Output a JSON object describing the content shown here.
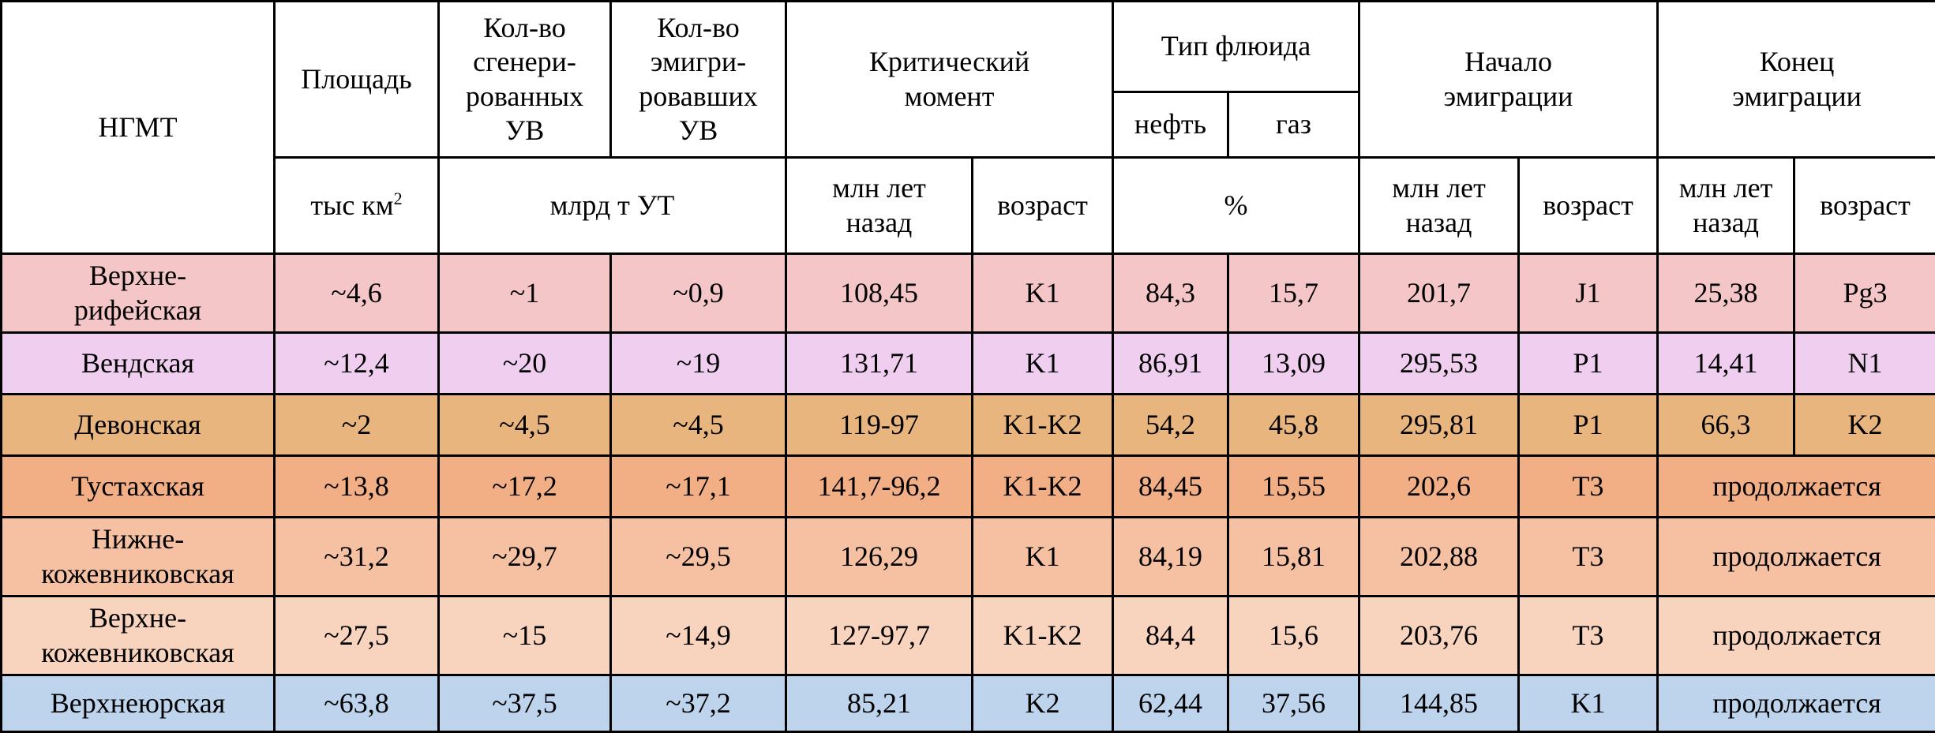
{
  "header": {
    "ngmt": "НГМТ",
    "area": "Площадь",
    "generated": "Кол-во\nсгенери-\nрованных\nУВ",
    "emigrated": "Кол-во\nэмигри-\nровавших\nУВ",
    "critical": "Критический\nмомент",
    "fluid": "Тип флюида",
    "oil": "нефть",
    "gas": "газ",
    "start": "Начало\nэмиграции",
    "end": "Конец\nэмиграции",
    "area_unit": "тыс км",
    "area_unit_sup": "2",
    "volume_unit": "млрд т УТ",
    "mya": "млн лет\nназад",
    "age": "возраст",
    "percent": "%"
  },
  "rows": [
    {
      "name": "Верхне-\nрифейская",
      "color": "#f5c6c8",
      "area": "~4,6",
      "gen": "~1",
      "emig": "~0,9",
      "crit_mya": "108,45",
      "crit_age": "K1",
      "oil": "84,3",
      "gas": "15,7",
      "start_mya": "201,7",
      "start_age": "J1",
      "end_mya": "25,38",
      "end_age": "Pg3"
    },
    {
      "name": "Вендская",
      "color": "#f0cef0",
      "area": "~12,4",
      "gen": "~20",
      "emig": "~19",
      "crit_mya": "131,71",
      "crit_age": "K1",
      "oil": "86,91",
      "gas": "13,09",
      "start_mya": "295,53",
      "start_age": "P1",
      "end_mya": "14,41",
      "end_age": "N1"
    },
    {
      "name": "Девонская",
      "color": "#e8b57f",
      "area": "~2",
      "gen": "~4,5",
      "emig": "~4,5",
      "crit_mya": "119-97",
      "crit_age": "K1-K2",
      "oil": "54,2",
      "gas": "45,8",
      "start_mya": "295,81",
      "start_age": "P1",
      "end_mya": "66,3",
      "end_age": "K2"
    },
    {
      "name": "Тустахская",
      "color": "#f2ae85",
      "area": "~13,8",
      "gen": "~17,2",
      "emig": "~17,1",
      "crit_mya": "141,7-96,2",
      "crit_age": "K1-K2",
      "oil": "84,45",
      "gas": "15,55",
      "start_mya": "202,6",
      "start_age": "T3",
      "end_merged": "продолжается"
    },
    {
      "name": "Нижне-\nкожевниковская",
      "color": "#f5c1a2",
      "area": "~31,2",
      "gen": "~29,7",
      "emig": "~29,5",
      "crit_mya": "126,29",
      "crit_age": "K1",
      "oil": "84,19",
      "gas": "15,81",
      "start_mya": "202,88",
      "start_age": "T3",
      "end_merged": "продолжается"
    },
    {
      "name": "Верхне-\nкожевниковская",
      "color": "#f8d3bd",
      "area": "~27,5",
      "gen": "~15",
      "emig": "~14,9",
      "crit_mya": "127-97,7",
      "crit_age": "K1-K2",
      "oil": "84,4",
      "gas": "15,6",
      "start_mya": "203,76",
      "start_age": "T3",
      "end_merged": "продолжается"
    },
    {
      "name": "Верхнеюрская",
      "color": "#bdd4ec",
      "area": "~63,8",
      "gen": "~37,5",
      "emig": "~37,2",
      "crit_mya": "85,21",
      "crit_age": "K2",
      "oil": "62,44",
      "gas": "37,56",
      "start_mya": "144,85",
      "start_age": "K1",
      "end_merged": "продолжается"
    }
  ]
}
